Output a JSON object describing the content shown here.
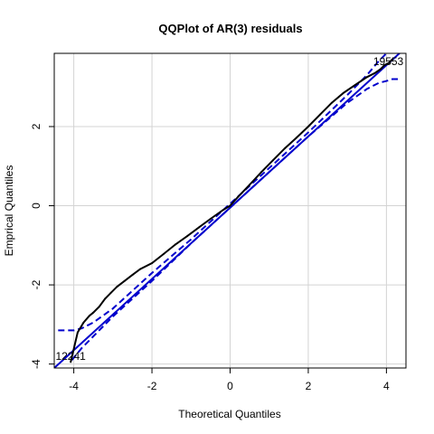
{
  "chart_data": {
    "type": "scatter",
    "title": "QQPlot of AR(3) residuals",
    "xlabel": "Theoretical Quantiles",
    "ylabel": "Emprical Quantiles",
    "xlim": [
      -4.5,
      4.5
    ],
    "ylim": [
      -4.1,
      3.85
    ],
    "xticks": [
      -4,
      -2,
      0,
      2,
      4
    ],
    "yticks": [
      -4,
      -2,
      0,
      2
    ],
    "grid": true,
    "colors": {
      "points": "#000000",
      "reference": "#0000cc",
      "envelope": "#0000cc",
      "grid": "#d3d3d3"
    },
    "annotations": [
      {
        "text": "19553",
        "x": 4.05,
        "y": 3.55
      },
      {
        "text": "12241",
        "x": -4.08,
        "y": -3.9
      }
    ],
    "series": [
      {
        "role": "points",
        "x": [
          -4.08,
          -3.9,
          -3.75,
          -3.6,
          -3.5,
          -3.35,
          -3.2,
          -3.05,
          -2.9,
          -2.7,
          -2.5,
          -2.3,
          -2.0,
          -1.7,
          -1.4,
          -1.1,
          -0.8,
          -0.5,
          -0.2,
          0.0,
          0.2,
          0.5,
          0.8,
          1.1,
          1.4,
          1.7,
          2.0,
          2.3,
          2.6,
          2.9,
          3.2,
          3.5,
          3.7,
          3.85,
          3.95,
          4.05,
          4.15
        ],
        "y": [
          -3.95,
          -3.2,
          -2.95,
          -2.78,
          -2.7,
          -2.55,
          -2.35,
          -2.2,
          -2.05,
          -1.9,
          -1.75,
          -1.6,
          -1.45,
          -1.22,
          -0.98,
          -0.77,
          -0.55,
          -0.33,
          -0.12,
          0.0,
          0.22,
          0.53,
          0.85,
          1.15,
          1.45,
          1.72,
          2.0,
          2.3,
          2.6,
          2.85,
          3.05,
          3.25,
          3.35,
          3.45,
          3.55,
          3.6,
          3.7
        ]
      },
      {
        "role": "reference",
        "x": [
          -4.5,
          4.5
        ],
        "y": [
          -4.1,
          4.0
        ]
      },
      {
        "role": "envelope-upper",
        "x": [
          -4.4,
          -4.0,
          -3.8,
          -3.5,
          -3.0,
          -2.0,
          -1.0,
          0.0,
          1.0,
          2.0,
          3.0,
          3.5,
          3.8,
          4.0,
          4.15
        ],
        "y": [
          -3.15,
          -3.15,
          -3.1,
          -2.95,
          -2.6,
          -1.7,
          -0.85,
          0.05,
          0.95,
          1.85,
          2.8,
          3.3,
          3.65,
          3.85,
          3.95
        ]
      },
      {
        "role": "envelope-lower",
        "x": [
          -4.05,
          -3.8,
          -3.5,
          -3.0,
          -2.0,
          -1.0,
          0.0,
          1.0,
          2.0,
          3.0,
          3.5,
          3.8,
          4.0,
          4.15,
          4.35
        ],
        "y": [
          -3.9,
          -3.6,
          -3.3,
          -2.8,
          -1.9,
          -0.95,
          -0.05,
          0.85,
          1.75,
          2.6,
          2.95,
          3.1,
          3.15,
          3.2,
          3.2
        ]
      }
    ]
  }
}
